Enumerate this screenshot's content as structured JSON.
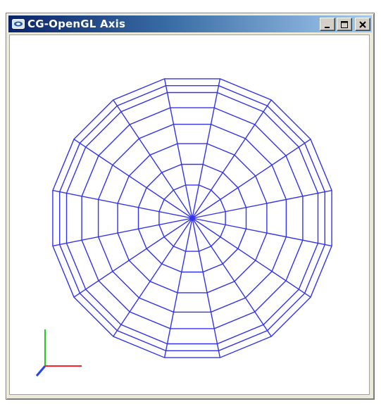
{
  "window": {
    "title": "CG-OpenGL Axis",
    "controls": [
      "minimize",
      "maximize",
      "close"
    ]
  },
  "scene": {
    "mesh_color": "#3333ee",
    "segments": 16,
    "rings": 9,
    "axis_colors": {
      "x": "#ff2222",
      "y": "#22cc22",
      "z": "#2244ee"
    }
  },
  "icons": {
    "app": "opengl-window-icon",
    "minimize": "minimize-icon",
    "maximize": "maximize-icon",
    "close": "close-icon"
  }
}
